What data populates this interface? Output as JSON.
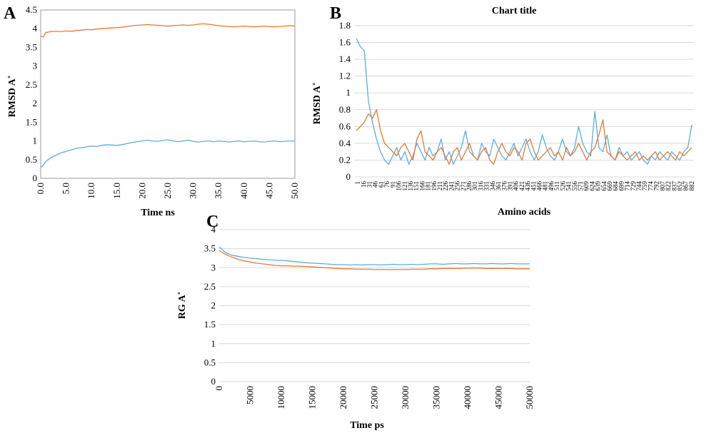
{
  "chart_data": [
    {
      "panel": "A",
      "type": "line",
      "title": "",
      "xlabel": "Time ns",
      "ylabel": "RMSD A˚",
      "xlim": [
        0,
        50
      ],
      "ylim": [
        0,
        4.5
      ],
      "xticks": [
        "0.0",
        "5.0",
        "10.0",
        "15.0",
        "20.0",
        "25.0",
        "30.0",
        "35.0",
        "40.0",
        "45.0",
        "50.0"
      ],
      "yticks": [
        "0",
        "0.5",
        "1",
        "1.5",
        "2",
        "2.5",
        "3",
        "3.5",
        "4",
        "4.5"
      ],
      "grid": false,
      "series": [
        {
          "color": "#5aaee0",
          "x": [
            0,
            0.5,
            1,
            2,
            3,
            4,
            5,
            6,
            7,
            8,
            9,
            10,
            11,
            12,
            13,
            14,
            15,
            16,
            17,
            18,
            19,
            20,
            21,
            22,
            23,
            24,
            25,
            26,
            27,
            28,
            29,
            30,
            31,
            32,
            33,
            34,
            35,
            36,
            37,
            38,
            39,
            40,
            41,
            42,
            43,
            44,
            45,
            46,
            47,
            48,
            49,
            50
          ],
          "y": [
            0.3,
            0.35,
            0.45,
            0.55,
            0.62,
            0.68,
            0.72,
            0.76,
            0.8,
            0.82,
            0.84,
            0.86,
            0.85,
            0.88,
            0.9,
            0.89,
            0.88,
            0.9,
            0.93,
            0.96,
            0.98,
            1.0,
            1.02,
            1.0,
            0.99,
            1.01,
            1.03,
            1.0,
            0.98,
            1.0,
            1.02,
            0.99,
            0.97,
            0.99,
            1.0,
            0.98,
            1.0,
            0.99,
            0.97,
            0.99,
            1.0,
            0.98,
            0.99,
            1.0,
            0.98,
            0.97,
            0.99,
            1.0,
            0.98,
            0.99,
            1.0,
            1.0
          ]
        },
        {
          "color": "#e87832",
          "x": [
            0,
            0.5,
            1,
            2,
            3,
            4,
            5,
            6,
            7,
            8,
            9,
            10,
            11,
            12,
            13,
            14,
            15,
            16,
            17,
            18,
            19,
            20,
            21,
            22,
            23,
            24,
            25,
            26,
            27,
            28,
            29,
            30,
            31,
            32,
            33,
            34,
            35,
            36,
            37,
            38,
            39,
            40,
            41,
            42,
            43,
            44,
            45,
            46,
            47,
            48,
            49,
            50
          ],
          "y": [
            3.8,
            3.78,
            3.9,
            3.92,
            3.93,
            3.92,
            3.94,
            3.93,
            3.95,
            3.96,
            3.98,
            3.97,
            3.99,
            4.0,
            4.01,
            4.02,
            4.03,
            4.04,
            4.06,
            4.08,
            4.09,
            4.1,
            4.11,
            4.1,
            4.09,
            4.08,
            4.07,
            4.08,
            4.09,
            4.1,
            4.09,
            4.1,
            4.12,
            4.13,
            4.12,
            4.1,
            4.08,
            4.07,
            4.06,
            4.05,
            4.06,
            4.07,
            4.06,
            4.05,
            4.06,
            4.07,
            4.06,
            4.05,
            4.06,
            4.07,
            4.08,
            4.07
          ]
        }
      ]
    },
    {
      "panel": "B",
      "type": "line",
      "title": "Chart title",
      "xlabel": "Amino acids",
      "ylabel": "RMSD A˚",
      "ylim": [
        0,
        1.8
      ],
      "yticks": [
        "0",
        "0.2",
        "0.4",
        "0.6",
        "0.8",
        "1",
        "1.2",
        "1.4",
        "1.6",
        "1.8"
      ],
      "xticks": [
        "1",
        "16",
        "31",
        "46",
        "61",
        "76",
        "91",
        "106",
        "121",
        "136",
        "151",
        "166",
        "181",
        "196",
        "211",
        "226",
        "241",
        "256",
        "271",
        "286",
        "301",
        "316",
        "331",
        "346",
        "361",
        "376",
        "391",
        "406",
        "421",
        "436",
        "451",
        "466",
        "481",
        "496",
        "511",
        "526",
        "541",
        "556",
        "571",
        "609",
        "624",
        "639",
        "654",
        "669",
        "684",
        "699",
        "714",
        "729",
        "744",
        "759",
        "774",
        "792",
        "807",
        "822",
        "837",
        "852",
        "867",
        "882"
      ],
      "grid": true,
      "series": [
        {
          "color": "#5aaee0",
          "y": [
            1.65,
            1.55,
            1.5,
            0.9,
            0.65,
            0.45,
            0.3,
            0.2,
            0.15,
            0.25,
            0.35,
            0.2,
            0.3,
            0.15,
            0.25,
            0.4,
            0.3,
            0.2,
            0.35,
            0.25,
            0.3,
            0.45,
            0.2,
            0.3,
            0.15,
            0.25,
            0.35,
            0.55,
            0.3,
            0.25,
            0.2,
            0.4,
            0.3,
            0.25,
            0.45,
            0.35,
            0.25,
            0.2,
            0.3,
            0.4,
            0.25,
            0.35,
            0.45,
            0.3,
            0.2,
            0.3,
            0.5,
            0.35,
            0.25,
            0.2,
            0.3,
            0.45,
            0.3,
            0.25,
            0.35,
            0.6,
            0.4,
            0.3,
            0.25,
            0.78,
            0.35,
            0.3,
            0.5,
            0.25,
            0.2,
            0.35,
            0.25,
            0.3,
            0.2,
            0.25,
            0.3,
            0.2,
            0.15,
            0.25,
            0.2,
            0.3,
            0.25,
            0.2,
            0.3,
            0.25,
            0.2,
            0.3,
            0.35,
            0.62
          ]
        },
        {
          "color": "#e87832",
          "y": [
            0.55,
            0.6,
            0.65,
            0.75,
            0.7,
            0.8,
            0.55,
            0.4,
            0.35,
            0.3,
            0.25,
            0.35,
            0.4,
            0.3,
            0.2,
            0.45,
            0.55,
            0.3,
            0.25,
            0.2,
            0.3,
            0.35,
            0.25,
            0.15,
            0.3,
            0.35,
            0.2,
            0.3,
            0.4,
            0.25,
            0.2,
            0.3,
            0.35,
            0.2,
            0.15,
            0.3,
            0.4,
            0.3,
            0.25,
            0.35,
            0.3,
            0.2,
            0.4,
            0.45,
            0.3,
            0.2,
            0.25,
            0.3,
            0.35,
            0.25,
            0.3,
            0.2,
            0.35,
            0.25,
            0.3,
            0.4,
            0.3,
            0.2,
            0.3,
            0.35,
            0.5,
            0.68,
            0.3,
            0.25,
            0.2,
            0.3,
            0.25,
            0.2,
            0.25,
            0.3,
            0.2,
            0.25,
            0.2,
            0.25,
            0.3,
            0.2,
            0.25,
            0.3,
            0.25,
            0.2,
            0.3,
            0.25,
            0.3,
            0.35
          ]
        }
      ]
    },
    {
      "panel": "C",
      "type": "line",
      "title": "",
      "xlabel": "Time ps",
      "ylabel": "RG A˚",
      "xlim": [
        0,
        50000
      ],
      "ylim": [
        0,
        4
      ],
      "xticks": [
        "0",
        "5000",
        "10000",
        "15000",
        "20000",
        "25000",
        "30000",
        "35000",
        "40000",
        "45000",
        "50000"
      ],
      "yticks": [
        "0",
        "0.5",
        "1",
        "1.5",
        "2",
        "2.5",
        "3",
        "3.5",
        "4"
      ],
      "grid": true,
      "series": [
        {
          "color": "#5aaee0",
          "x": [
            0,
            1000,
            2000,
            3000,
            4000,
            5000,
            6000,
            7000,
            8000,
            9000,
            10000,
            11000,
            12000,
            13000,
            14000,
            15000,
            16000,
            17000,
            18000,
            19000,
            20000,
            21000,
            22000,
            23000,
            24000,
            25000,
            26000,
            27000,
            28000,
            29000,
            30000,
            31000,
            32000,
            33000,
            34000,
            35000,
            36000,
            37000,
            38000,
            39000,
            40000,
            41000,
            42000,
            43000,
            44000,
            45000,
            46000,
            47000,
            48000,
            49000,
            50000
          ],
          "y": [
            3.55,
            3.4,
            3.33,
            3.3,
            3.27,
            3.25,
            3.24,
            3.22,
            3.21,
            3.2,
            3.19,
            3.18,
            3.16,
            3.15,
            3.13,
            3.12,
            3.11,
            3.1,
            3.09,
            3.08,
            3.08,
            3.07,
            3.08,
            3.07,
            3.08,
            3.08,
            3.07,
            3.08,
            3.09,
            3.08,
            3.08,
            3.09,
            3.08,
            3.09,
            3.1,
            3.1,
            3.09,
            3.1,
            3.11,
            3.1,
            3.1,
            3.11,
            3.1,
            3.1,
            3.11,
            3.1,
            3.1,
            3.11,
            3.1,
            3.1,
            3.1
          ]
        },
        {
          "color": "#e87832",
          "x": [
            0,
            1000,
            2000,
            3000,
            4000,
            5000,
            6000,
            7000,
            8000,
            9000,
            10000,
            11000,
            12000,
            13000,
            14000,
            15000,
            16000,
            17000,
            18000,
            19000,
            20000,
            21000,
            22000,
            23000,
            24000,
            25000,
            26000,
            27000,
            28000,
            29000,
            30000,
            31000,
            32000,
            33000,
            34000,
            35000,
            36000,
            37000,
            38000,
            39000,
            40000,
            41000,
            42000,
            43000,
            44000,
            45000,
            46000,
            47000,
            48000,
            49000,
            50000
          ],
          "y": [
            3.45,
            3.35,
            3.28,
            3.22,
            3.18,
            3.15,
            3.12,
            3.1,
            3.08,
            3.06,
            3.05,
            3.05,
            3.04,
            3.04,
            3.03,
            3.02,
            3.01,
            3.0,
            2.99,
            2.98,
            2.97,
            2.97,
            2.96,
            2.96,
            2.96,
            2.95,
            2.95,
            2.95,
            2.95,
            2.95,
            2.95,
            2.96,
            2.96,
            2.96,
            2.97,
            2.97,
            2.98,
            2.98,
            2.98,
            2.98,
            2.99,
            2.99,
            2.99,
            2.98,
            2.98,
            2.98,
            2.98,
            2.98,
            2.97,
            2.97,
            2.97
          ]
        }
      ]
    }
  ]
}
